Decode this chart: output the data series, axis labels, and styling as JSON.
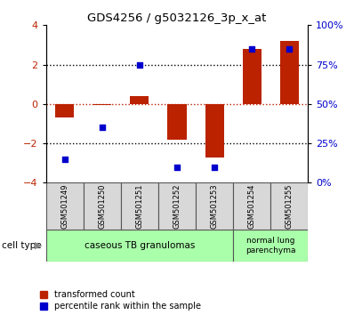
{
  "title": "GDS4256 / g5032126_3p_x_at",
  "samples": [
    "GSM501249",
    "GSM501250",
    "GSM501251",
    "GSM501252",
    "GSM501253",
    "GSM501254",
    "GSM501255"
  ],
  "red_values": [
    -0.7,
    -0.05,
    0.4,
    -1.8,
    -2.7,
    2.8,
    3.2
  ],
  "blue_values": [
    15,
    35,
    75,
    10,
    10,
    85,
    85
  ],
  "left_ylim": [
    -4,
    4
  ],
  "right_ylim": [
    0,
    100
  ],
  "left_yticks": [
    -4,
    -2,
    0,
    2,
    4
  ],
  "right_yticks": [
    0,
    25,
    50,
    75,
    100
  ],
  "right_yticklabels": [
    "0%",
    "25%",
    "50%",
    "75%",
    "100%"
  ],
  "red_color": "#bb2200",
  "blue_color": "#0000cc",
  "bar_width": 0.5,
  "dotted_lines": [
    -2,
    0,
    2
  ],
  "legend_red": "transformed count",
  "legend_blue": "percentile rank within the sample",
  "cell_type_label": "cell type",
  "group1_label": "caseous TB granulomas",
  "group2_label": "normal lung\nparenchyma",
  "group_color": "#aaffaa",
  "tick_bg": "#d8d8d8"
}
